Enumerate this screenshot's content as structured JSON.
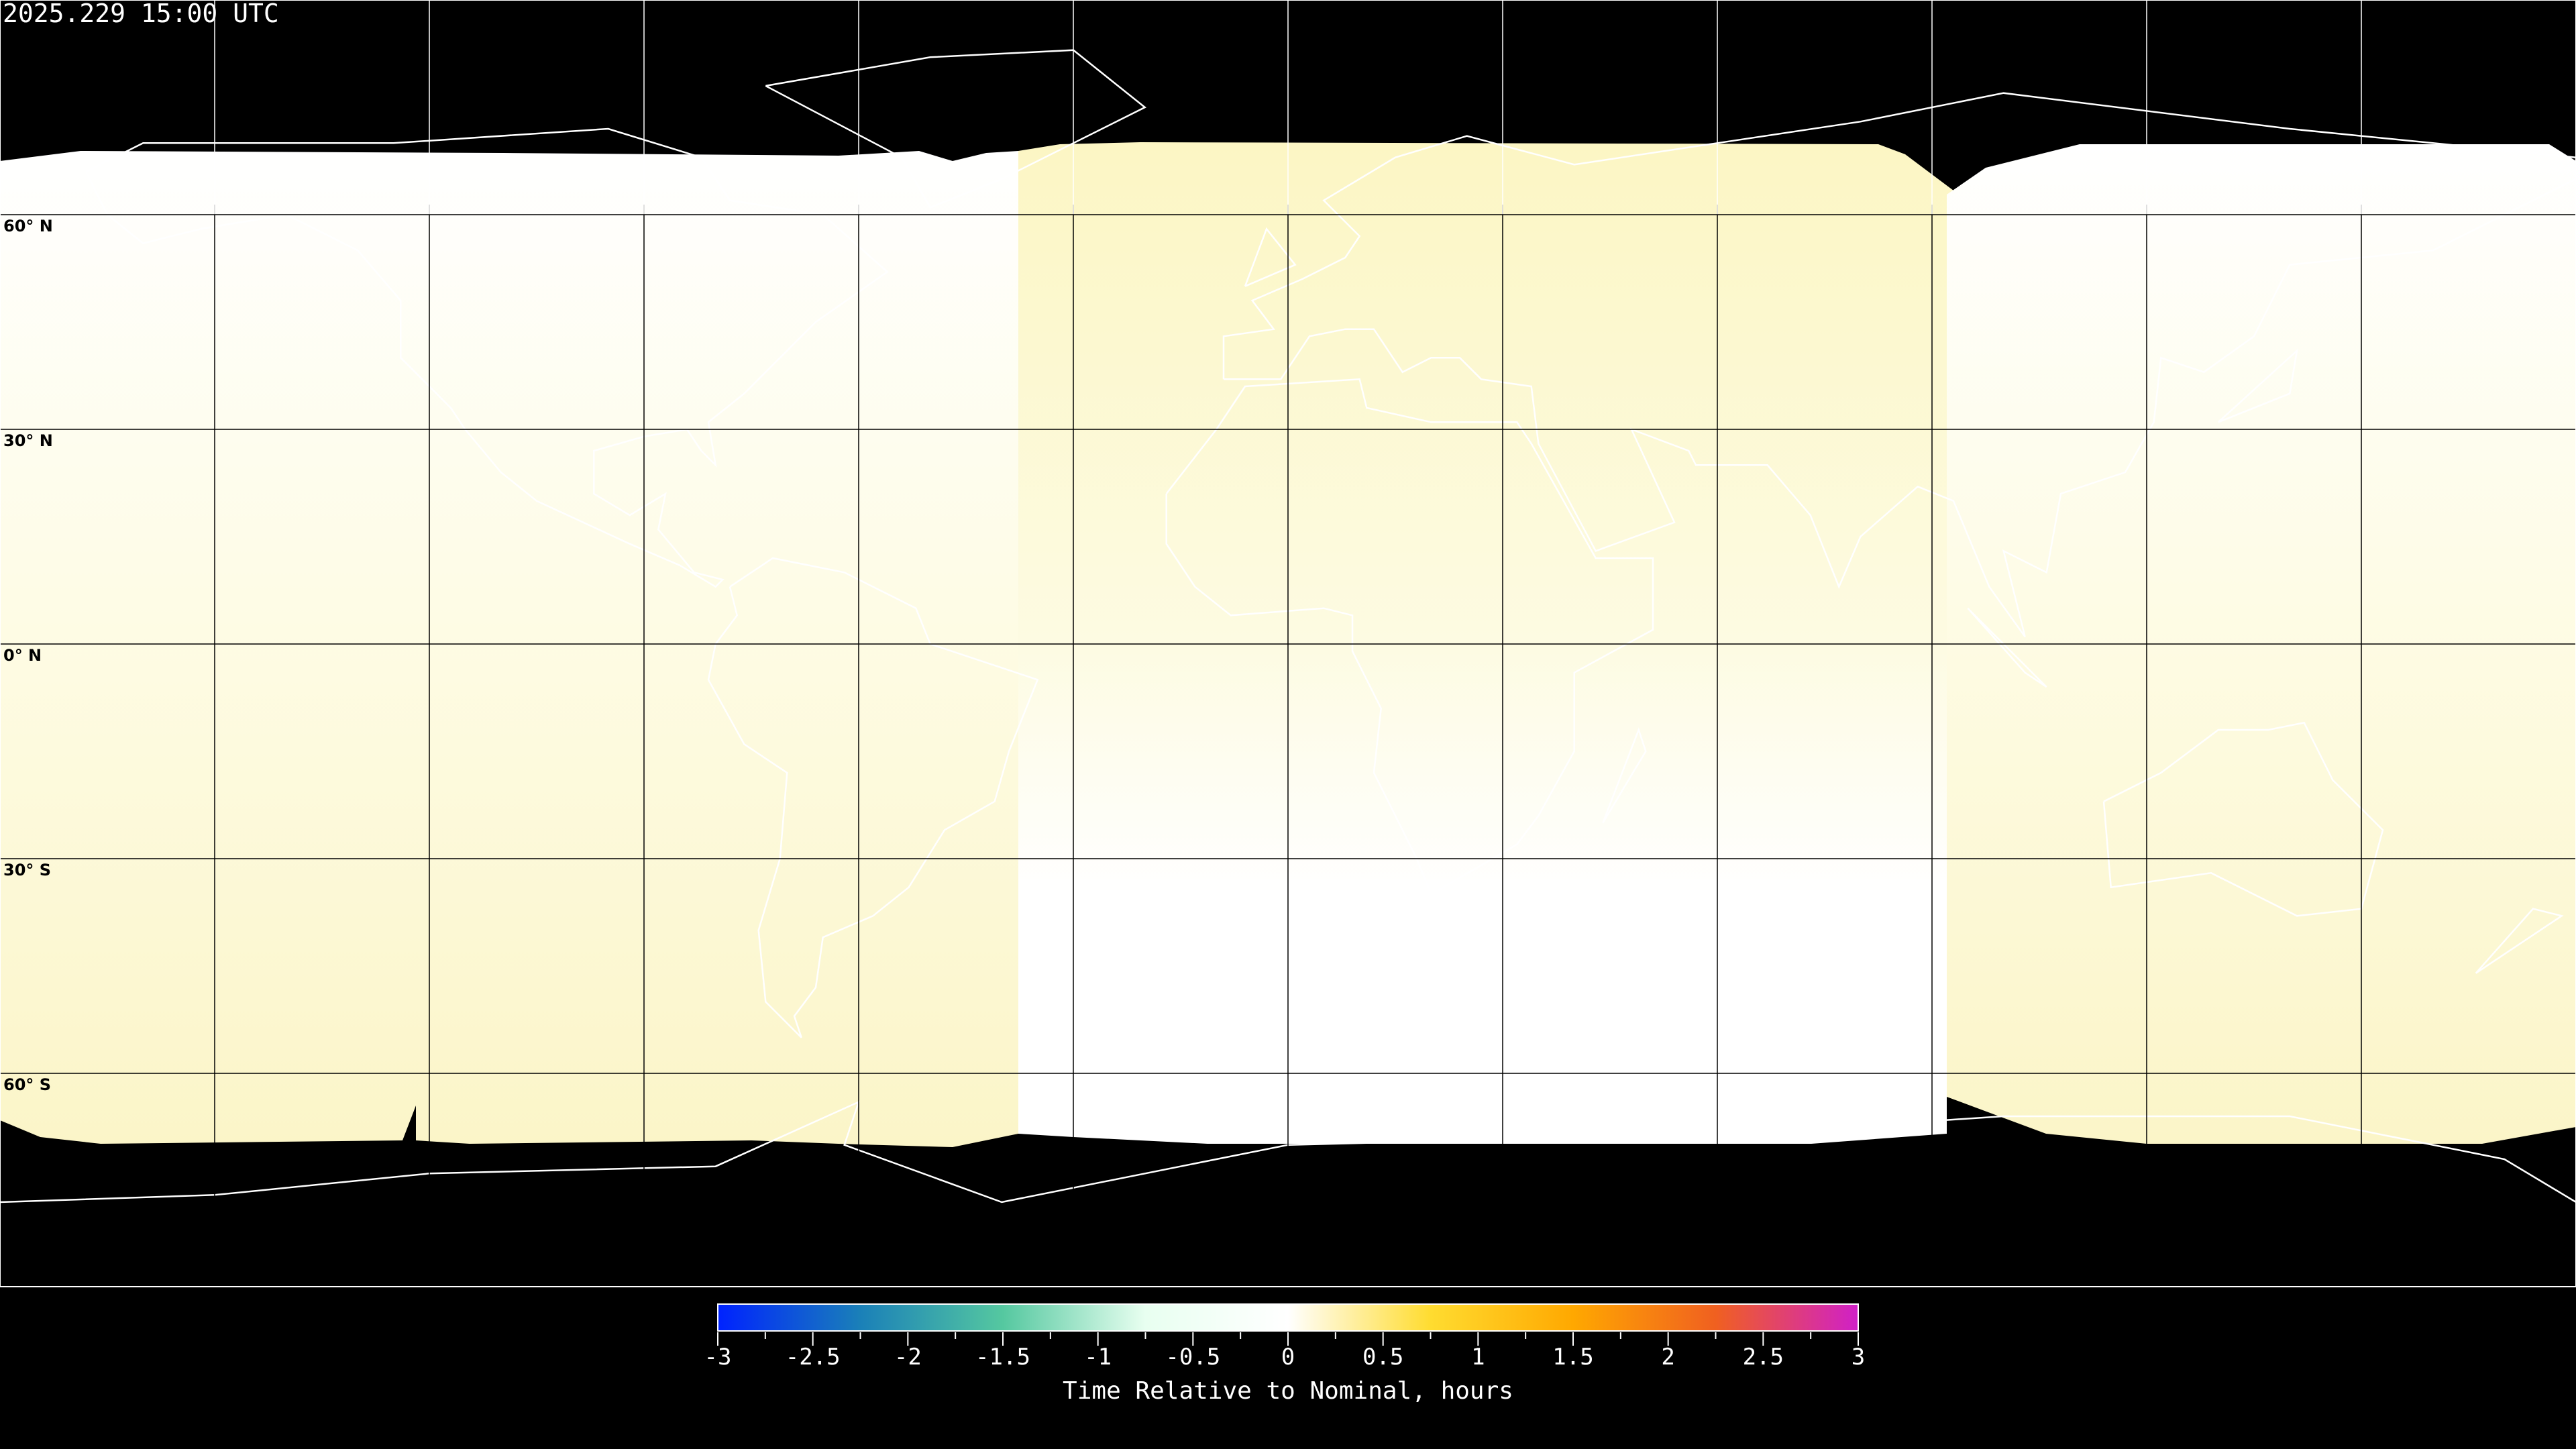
{
  "title": "2025.229 15:00 UTC",
  "map": {
    "projection": "equirectangular",
    "lon_range": [
      -180,
      180
    ],
    "lat_range": [
      -90,
      90
    ],
    "grid_spacing_deg": 30,
    "lat_labels": [
      "60° N",
      "30° N",
      "0° N",
      "30° S",
      "60° S"
    ],
    "background_color": "#000000",
    "coastline_color_on_data": "#000000",
    "coastline_color_on_background": "#ffffff",
    "regions": [
      {
        "lon_range": [
          -180,
          -38
        ],
        "north_value": 0.0,
        "south_value": 0.3
      },
      {
        "lon_range": [
          -38,
          92
        ],
        "north_value": 0.3,
        "south_value": 0.0
      },
      {
        "lon_range": [
          92,
          180
        ],
        "north_value": 0.0,
        "south_value": 0.3
      }
    ]
  },
  "colorbar": {
    "label": "Time Relative to Nominal, hours",
    "range": [
      -3,
      3
    ],
    "ticks": [
      "-3",
      "-2.5",
      "-2",
      "-1.5",
      "-1",
      "-0.5",
      "0",
      "0.5",
      "1",
      "1.5",
      "2",
      "2.5",
      "3"
    ],
    "colors": [
      "#0022ff",
      "#1a80b8",
      "#55c8a0",
      "#e8fff0",
      "#ffffff",
      "#ffdc30",
      "#ffa800",
      "#f06020",
      "#d020c8"
    ]
  }
}
